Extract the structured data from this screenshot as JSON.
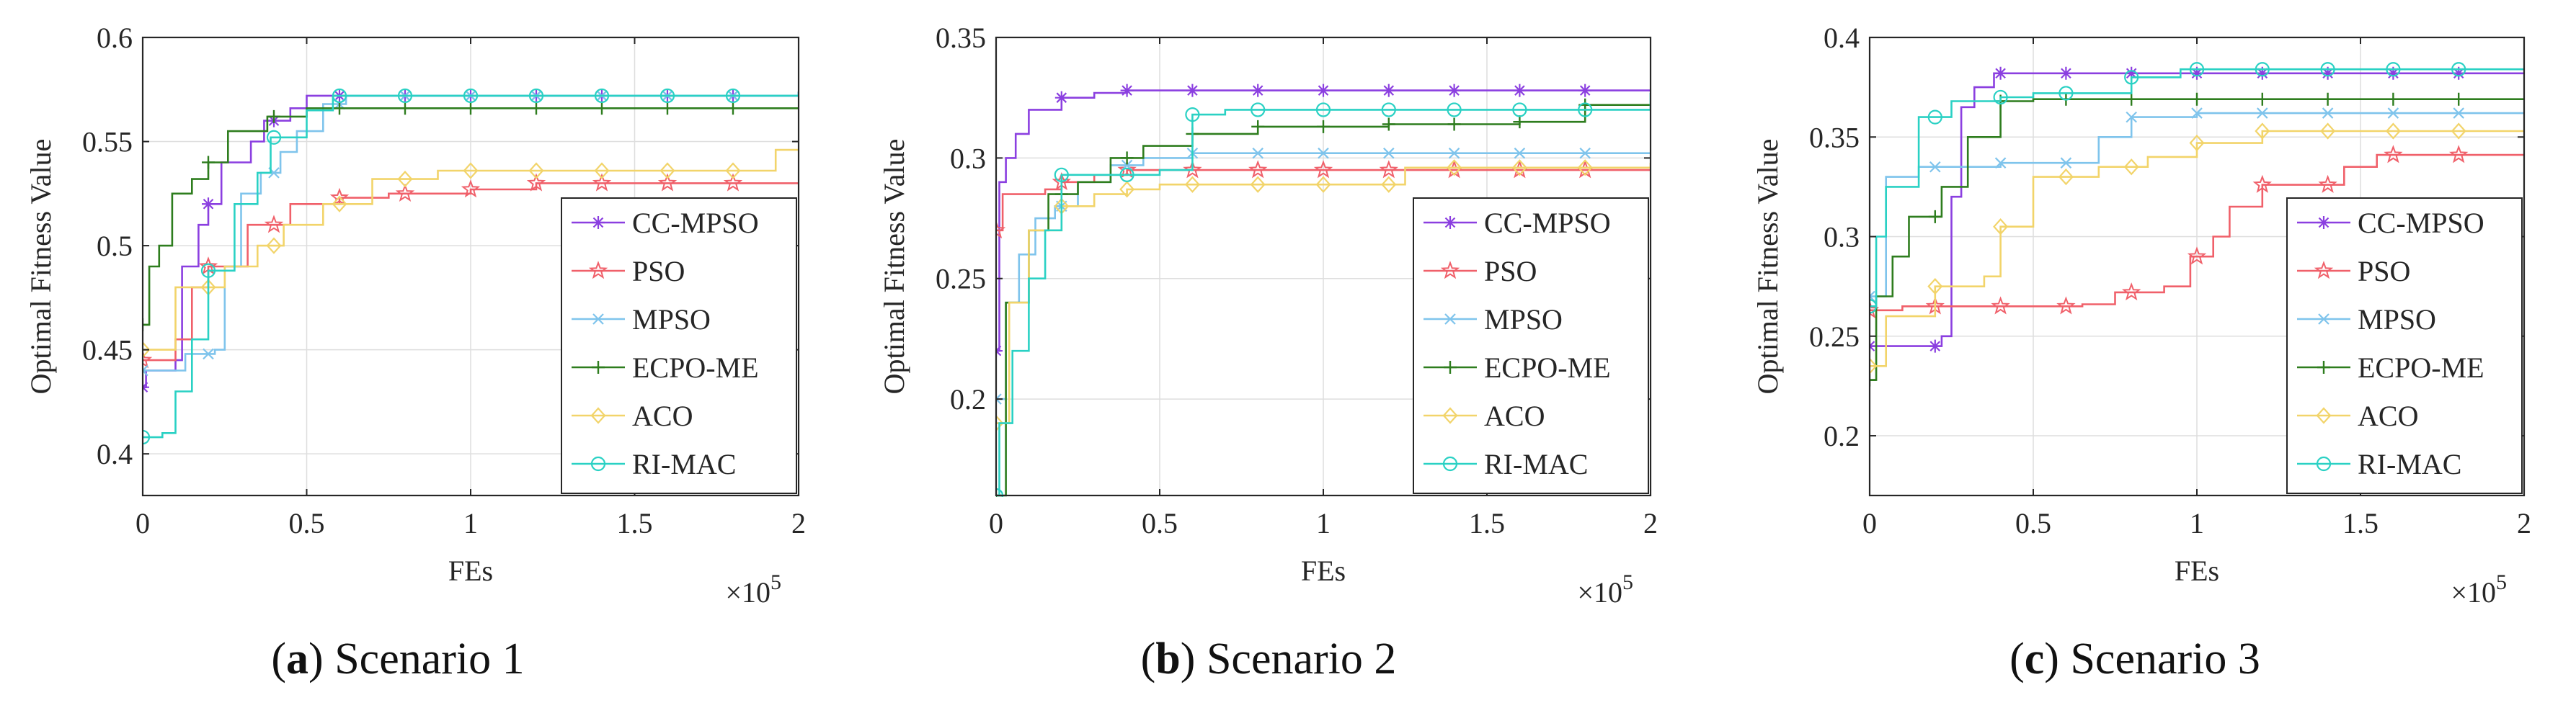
{
  "figure": {
    "x_multiplier_base": "×10",
    "x_multiplier_exp": "5"
  },
  "series_styles": [
    {
      "name": "CC-MPSO",
      "color": "#8b3fe0",
      "marker": "asterisk"
    },
    {
      "name": "PSO",
      "color": "#f0606a",
      "marker": "star"
    },
    {
      "name": "MPSO",
      "color": "#7fc4ec",
      "marker": "x"
    },
    {
      "name": "ECPO-ME",
      "color": "#2e7d1e",
      "marker": "plus"
    },
    {
      "name": "ACO",
      "color": "#f2d46a",
      "marker": "diamond"
    },
    {
      "name": "RI-MAC",
      "color": "#2ad1c4",
      "marker": "circle"
    }
  ],
  "chart_data": [
    {
      "type": "line",
      "step": true,
      "caption_letter": "a",
      "caption_text": " Scenario 1",
      "xlabel": "FEs",
      "ylabel": "Optimal Fitness Value",
      "xlim": [
        0,
        2
      ],
      "ylim": [
        0.38,
        0.6
      ],
      "xticks": [
        0,
        0.5,
        1,
        1.5,
        2
      ],
      "xtick_labels": [
        "0",
        "0.5",
        "1",
        "1.5",
        "2"
      ],
      "yticks": [
        0.4,
        0.45,
        0.5,
        0.55,
        0.6
      ],
      "ytick_labels": [
        "0.4",
        "0.45",
        "0.5",
        "0.55",
        "0.6"
      ],
      "marker_x": [
        0,
        0.2,
        0.4,
        0.6,
        0.8,
        1.0,
        1.2,
        1.4,
        1.6,
        1.8
      ],
      "series": [
        {
          "name": "CC-MPSO",
          "points": [
            [
              0,
              0.432
            ],
            [
              0.01,
              0.44
            ],
            [
              0.1,
              0.445
            ],
            [
              0.12,
              0.49
            ],
            [
              0.17,
              0.51
            ],
            [
              0.2,
              0.52
            ],
            [
              0.24,
              0.54
            ],
            [
              0.33,
              0.55
            ],
            [
              0.37,
              0.56
            ],
            [
              0.45,
              0.566
            ],
            [
              0.5,
              0.572
            ],
            [
              2,
              0.574
            ]
          ]
        },
        {
          "name": "PSO",
          "points": [
            [
              0,
              0.445
            ],
            [
              0.1,
              0.455
            ],
            [
              0.15,
              0.48
            ],
            [
              0.2,
              0.49
            ],
            [
              0.32,
              0.51
            ],
            [
              0.45,
              0.52
            ],
            [
              0.6,
              0.523
            ],
            [
              0.75,
              0.525
            ],
            [
              1.0,
              0.527
            ],
            [
              1.2,
              0.53
            ],
            [
              2,
              0.53
            ]
          ]
        },
        {
          "name": "MPSO",
          "points": [
            [
              0,
              0.44
            ],
            [
              0.13,
              0.448
            ],
            [
              0.22,
              0.45
            ],
            [
              0.25,
              0.49
            ],
            [
              0.3,
              0.525
            ],
            [
              0.36,
              0.535
            ],
            [
              0.42,
              0.545
            ],
            [
              0.47,
              0.555
            ],
            [
              0.55,
              0.568
            ],
            [
              0.62,
              0.572
            ],
            [
              2,
              0.573
            ]
          ]
        },
        {
          "name": "ECPO-ME",
          "points": [
            [
              0,
              0.462
            ],
            [
              0.02,
              0.49
            ],
            [
              0.05,
              0.5
            ],
            [
              0.09,
              0.525
            ],
            [
              0.15,
              0.532
            ],
            [
              0.2,
              0.54
            ],
            [
              0.26,
              0.555
            ],
            [
              0.38,
              0.562
            ],
            [
              0.5,
              0.566
            ],
            [
              2,
              0.566
            ]
          ]
        },
        {
          "name": "ACO",
          "points": [
            [
              0,
              0.45
            ],
            [
              0.1,
              0.48
            ],
            [
              0.25,
              0.49
            ],
            [
              0.35,
              0.5
            ],
            [
              0.43,
              0.51
            ],
            [
              0.55,
              0.52
            ],
            [
              0.7,
              0.532
            ],
            [
              0.9,
              0.536
            ],
            [
              1.8,
              0.536
            ],
            [
              1.93,
              0.546
            ],
            [
              2,
              0.546
            ]
          ]
        },
        {
          "name": "RI-MAC",
          "points": [
            [
              0,
              0.408
            ],
            [
              0.06,
              0.41
            ],
            [
              0.1,
              0.43
            ],
            [
              0.15,
              0.455
            ],
            [
              0.2,
              0.488
            ],
            [
              0.28,
              0.52
            ],
            [
              0.35,
              0.535
            ],
            [
              0.39,
              0.552
            ],
            [
              0.5,
              0.565
            ],
            [
              0.58,
              0.572
            ],
            [
              2,
              0.574
            ]
          ]
        }
      ],
      "legend": [
        "CC-MPSO",
        "PSO",
        "MPSO",
        "ECPO-ME",
        "ACO",
        "RI-MAC"
      ],
      "legend_position": "bottom-right",
      "grid": true
    },
    {
      "type": "line",
      "step": true,
      "caption_letter": "b",
      "caption_text": " Scenario 2",
      "xlabel": "FEs",
      "ylabel": "Optimal Fitness Value",
      "xlim": [
        0,
        2
      ],
      "ylim": [
        0.16,
        0.35
      ],
      "xticks": [
        0,
        0.5,
        1,
        1.5,
        2
      ],
      "xtick_labels": [
        "0",
        "0.5",
        "1",
        "1.5",
        "2"
      ],
      "yticks": [
        0.2,
        0.25,
        0.3,
        0.35
      ],
      "ytick_labels": [
        "0.2",
        "0.25",
        "0.3",
        "0.35"
      ],
      "marker_x": [
        0,
        0.2,
        0.4,
        0.6,
        0.8,
        1.0,
        1.2,
        1.4,
        1.6,
        1.8
      ],
      "series": [
        {
          "name": "CC-MPSO",
          "points": [
            [
              0,
              0.22
            ],
            [
              0.01,
              0.29
            ],
            [
              0.03,
              0.3
            ],
            [
              0.06,
              0.31
            ],
            [
              0.1,
              0.32
            ],
            [
              0.2,
              0.325
            ],
            [
              0.3,
              0.327
            ],
            [
              0.4,
              0.328
            ],
            [
              2,
              0.328
            ]
          ]
        },
        {
          "name": "PSO",
          "points": [
            [
              0,
              0.27
            ],
            [
              0.02,
              0.285
            ],
            [
              0.15,
              0.287
            ],
            [
              0.2,
              0.29
            ],
            [
              0.3,
              0.293
            ],
            [
              0.4,
              0.295
            ],
            [
              2,
              0.295
            ]
          ]
        },
        {
          "name": "MPSO",
          "points": [
            [
              0,
              0.2
            ],
            [
              0.03,
              0.24
            ],
            [
              0.07,
              0.26
            ],
            [
              0.12,
              0.275
            ],
            [
              0.18,
              0.28
            ],
            [
              0.25,
              0.29
            ],
            [
              0.35,
              0.297
            ],
            [
              0.45,
              0.3
            ],
            [
              0.6,
              0.302
            ],
            [
              2,
              0.302
            ]
          ]
        },
        {
          "name": "ECPO-ME",
          "points": [
            [
              0,
              0.16
            ],
            [
              0.03,
              0.24
            ],
            [
              0.1,
              0.27
            ],
            [
              0.16,
              0.285
            ],
            [
              0.25,
              0.29
            ],
            [
              0.35,
              0.3
            ],
            [
              0.45,
              0.305
            ],
            [
              0.6,
              0.31
            ],
            [
              0.8,
              0.313
            ],
            [
              1.2,
              0.314
            ],
            [
              1.6,
              0.315
            ],
            [
              1.8,
              0.322
            ],
            [
              2,
              0.322
            ]
          ]
        },
        {
          "name": "ACO",
          "points": [
            [
              0,
              0.19
            ],
            [
              0.04,
              0.24
            ],
            [
              0.1,
              0.27
            ],
            [
              0.2,
              0.28
            ],
            [
              0.3,
              0.285
            ],
            [
              0.4,
              0.287
            ],
            [
              0.5,
              0.289
            ],
            [
              1.2,
              0.289
            ],
            [
              1.25,
              0.296
            ],
            [
              2,
              0.298
            ]
          ]
        },
        {
          "name": "RI-MAC",
          "points": [
            [
              0,
              0.16
            ],
            [
              0.01,
              0.19
            ],
            [
              0.05,
              0.22
            ],
            [
              0.1,
              0.25
            ],
            [
              0.15,
              0.27
            ],
            [
              0.2,
              0.293
            ],
            [
              0.5,
              0.295
            ],
            [
              0.6,
              0.318
            ],
            [
              0.7,
              0.32
            ],
            [
              2,
              0.327
            ]
          ]
        }
      ],
      "legend": [
        "CC-MPSO",
        "PSO",
        "MPSO",
        "ECPO-ME",
        "ACO",
        "RI-MAC"
      ],
      "legend_position": "bottom-right",
      "grid": true
    },
    {
      "type": "line",
      "step": true,
      "caption_letter": "c",
      "caption_text": " Scenario 3",
      "xlabel": "FEs",
      "ylabel": "Optimal Fitness Value",
      "xlim": [
        0,
        2
      ],
      "ylim": [
        0.17,
        0.4
      ],
      "xticks": [
        0,
        0.5,
        1,
        1.5,
        2
      ],
      "xtick_labels": [
        "0",
        "0.5",
        "1",
        "1.5",
        "2"
      ],
      "yticks": [
        0.2,
        0.25,
        0.3,
        0.35,
        0.4
      ],
      "ytick_labels": [
        "0.2",
        "0.25",
        "0.3",
        "0.35",
        "0.4"
      ],
      "marker_x": [
        0,
        0.2,
        0.4,
        0.6,
        0.8,
        1.0,
        1.2,
        1.4,
        1.6,
        1.8
      ],
      "series": [
        {
          "name": "CC-MPSO",
          "points": [
            [
              0,
              0.245
            ],
            [
              0.22,
              0.25
            ],
            [
              0.25,
              0.32
            ],
            [
              0.28,
              0.365
            ],
            [
              0.32,
              0.375
            ],
            [
              0.38,
              0.382
            ],
            [
              2,
              0.382
            ]
          ]
        },
        {
          "name": "PSO",
          "points": [
            [
              0,
              0.263
            ],
            [
              0.1,
              0.265
            ],
            [
              0.65,
              0.266
            ],
            [
              0.75,
              0.272
            ],
            [
              0.9,
              0.275
            ],
            [
              0.98,
              0.29
            ],
            [
              1.05,
              0.3
            ],
            [
              1.1,
              0.315
            ],
            [
              1.2,
              0.326
            ],
            [
              1.45,
              0.335
            ],
            [
              1.55,
              0.341
            ],
            [
              2,
              0.341
            ]
          ]
        },
        {
          "name": "MPSO",
          "points": [
            [
              0,
              0.27
            ],
            [
              0.05,
              0.33
            ],
            [
              0.15,
              0.335
            ],
            [
              0.4,
              0.337
            ],
            [
              0.7,
              0.35
            ],
            [
              0.8,
              0.36
            ],
            [
              1.0,
              0.362
            ],
            [
              2,
              0.362
            ]
          ]
        },
        {
          "name": "ECPO-ME",
          "points": [
            [
              0,
              0.228
            ],
            [
              0.02,
              0.27
            ],
            [
              0.07,
              0.29
            ],
            [
              0.12,
              0.31
            ],
            [
              0.22,
              0.325
            ],
            [
              0.3,
              0.35
            ],
            [
              0.4,
              0.368
            ],
            [
              0.5,
              0.369
            ],
            [
              2,
              0.369
            ]
          ]
        },
        {
          "name": "ACO",
          "points": [
            [
              0,
              0.235
            ],
            [
              0.05,
              0.26
            ],
            [
              0.2,
              0.275
            ],
            [
              0.35,
              0.28
            ],
            [
              0.4,
              0.305
            ],
            [
              0.5,
              0.33
            ],
            [
              0.7,
              0.335
            ],
            [
              0.85,
              0.34
            ],
            [
              1.0,
              0.347
            ],
            [
              1.2,
              0.353
            ],
            [
              2,
              0.353
            ]
          ]
        },
        {
          "name": "RI-MAC",
          "points": [
            [
              0,
              0.265
            ],
            [
              0.02,
              0.3
            ],
            [
              0.05,
              0.325
            ],
            [
              0.15,
              0.36
            ],
            [
              0.25,
              0.368
            ],
            [
              0.4,
              0.37
            ],
            [
              0.5,
              0.372
            ],
            [
              0.8,
              0.38
            ],
            [
              0.95,
              0.384
            ],
            [
              2,
              0.384
            ]
          ]
        }
      ],
      "legend": [
        "CC-MPSO",
        "PSO",
        "MPSO",
        "ECPO-ME",
        "ACO",
        "RI-MAC"
      ],
      "legend_position": "bottom-right",
      "grid": true
    }
  ]
}
